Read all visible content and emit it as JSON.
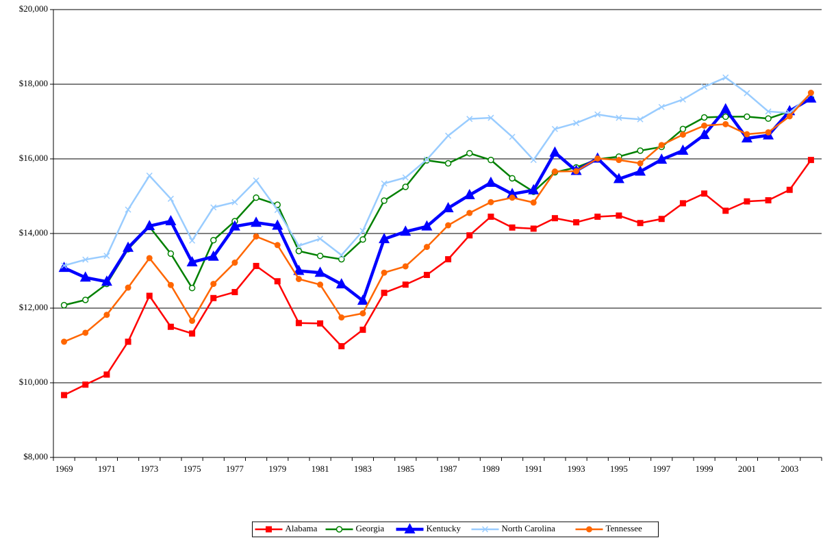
{
  "chart_data": {
    "type": "line",
    "categories": [
      "1969",
      null,
      "1971",
      null,
      "1973",
      null,
      "1975",
      null,
      "1977",
      null,
      "1979",
      null,
      "1981",
      null,
      "1983",
      null,
      "1985",
      null,
      "1987",
      null,
      "1989",
      null,
      "1991",
      null,
      "1993",
      null,
      "1995",
      null,
      "1997",
      null,
      "1999",
      null,
      "2001",
      null,
      "2003",
      null
    ],
    "series": [
      {
        "name": "Alabama",
        "color": "#ff0000",
        "marker": "square",
        "line_width": 2.5,
        "values": [
          9670,
          9950,
          10220,
          11100,
          12330,
          11500,
          11320,
          12270,
          12430,
          13130,
          12720,
          11600,
          11590,
          10980,
          11420,
          12410,
          12630,
          12890,
          13310,
          13950,
          14450,
          14160,
          14130,
          14410,
          14300,
          14450,
          14480,
          14280,
          14390,
          14810,
          15070,
          14610,
          14860,
          14890,
          15170,
          15970
        ]
      },
      {
        "name": "Georgia",
        "color": "#008000",
        "marker": "open-circle",
        "line_width": 2.5,
        "values": [
          12080,
          12220,
          12650,
          13580,
          14180,
          13460,
          12540,
          13820,
          14330,
          14960,
          14770,
          13530,
          13400,
          13310,
          13840,
          14880,
          15250,
          15960,
          15880,
          16150,
          15970,
          15480,
          15120,
          15640,
          15770,
          15990,
          16060,
          16220,
          16320,
          16800,
          17110,
          17130,
          17130,
          17080,
          17270,
          17630
        ]
      },
      {
        "name": "Kentucky",
        "color": "#0000ff",
        "marker": "triangle",
        "line_width": 4.5,
        "values": [
          13080,
          12820,
          12710,
          13620,
          14200,
          14330,
          13230,
          13380,
          14190,
          14290,
          14210,
          13000,
          12950,
          12640,
          12200,
          13850,
          14050,
          14190,
          14680,
          15030,
          15360,
          15060,
          15160,
          16170,
          15680,
          16010,
          15460,
          15660,
          15980,
          16220,
          16640,
          17330,
          16550,
          16630,
          17280,
          17620
        ]
      },
      {
        "name": "North Carolina",
        "color": "#99ccff",
        "marker": "x",
        "line_width": 2.5,
        "values": [
          13140,
          13300,
          13400,
          14640,
          15550,
          14930,
          13810,
          14700,
          14840,
          15420,
          14630,
          13670,
          13860,
          13420,
          14070,
          15340,
          15500,
          15980,
          16620,
          17070,
          17100,
          16590,
          15970,
          16800,
          16960,
          17190,
          17100,
          17060,
          17390,
          17590,
          17930,
          18180,
          17760,
          17270,
          17230,
          17740
        ]
      },
      {
        "name": "Tennessee",
        "color": "#ff6600",
        "marker": "circle",
        "line_width": 2.5,
        "values": [
          11100,
          11340,
          11820,
          12550,
          13340,
          12620,
          11660,
          12650,
          13220,
          13920,
          13690,
          12780,
          12630,
          11750,
          11860,
          12950,
          13120,
          13640,
          14220,
          14550,
          14840,
          14960,
          14830,
          15660,
          15670,
          16010,
          15970,
          15880,
          16370,
          16650,
          16890,
          16930,
          16660,
          16710,
          17140,
          17770
        ]
      }
    ],
    "ylim": [
      8000,
      20000
    ],
    "yticks": [
      {
        "value": 8000,
        "label": "$8,000"
      },
      {
        "value": 10000,
        "label": "$10,000"
      },
      {
        "value": 12000,
        "label": "$12,000"
      },
      {
        "value": 14000,
        "label": "$14,000"
      },
      {
        "value": 16000,
        "label": "$16,000"
      },
      {
        "value": 18000,
        "label": "$18,000"
      },
      {
        "value": 20000,
        "label": "$20,000"
      }
    ],
    "grid": true,
    "legend": "bottom"
  }
}
